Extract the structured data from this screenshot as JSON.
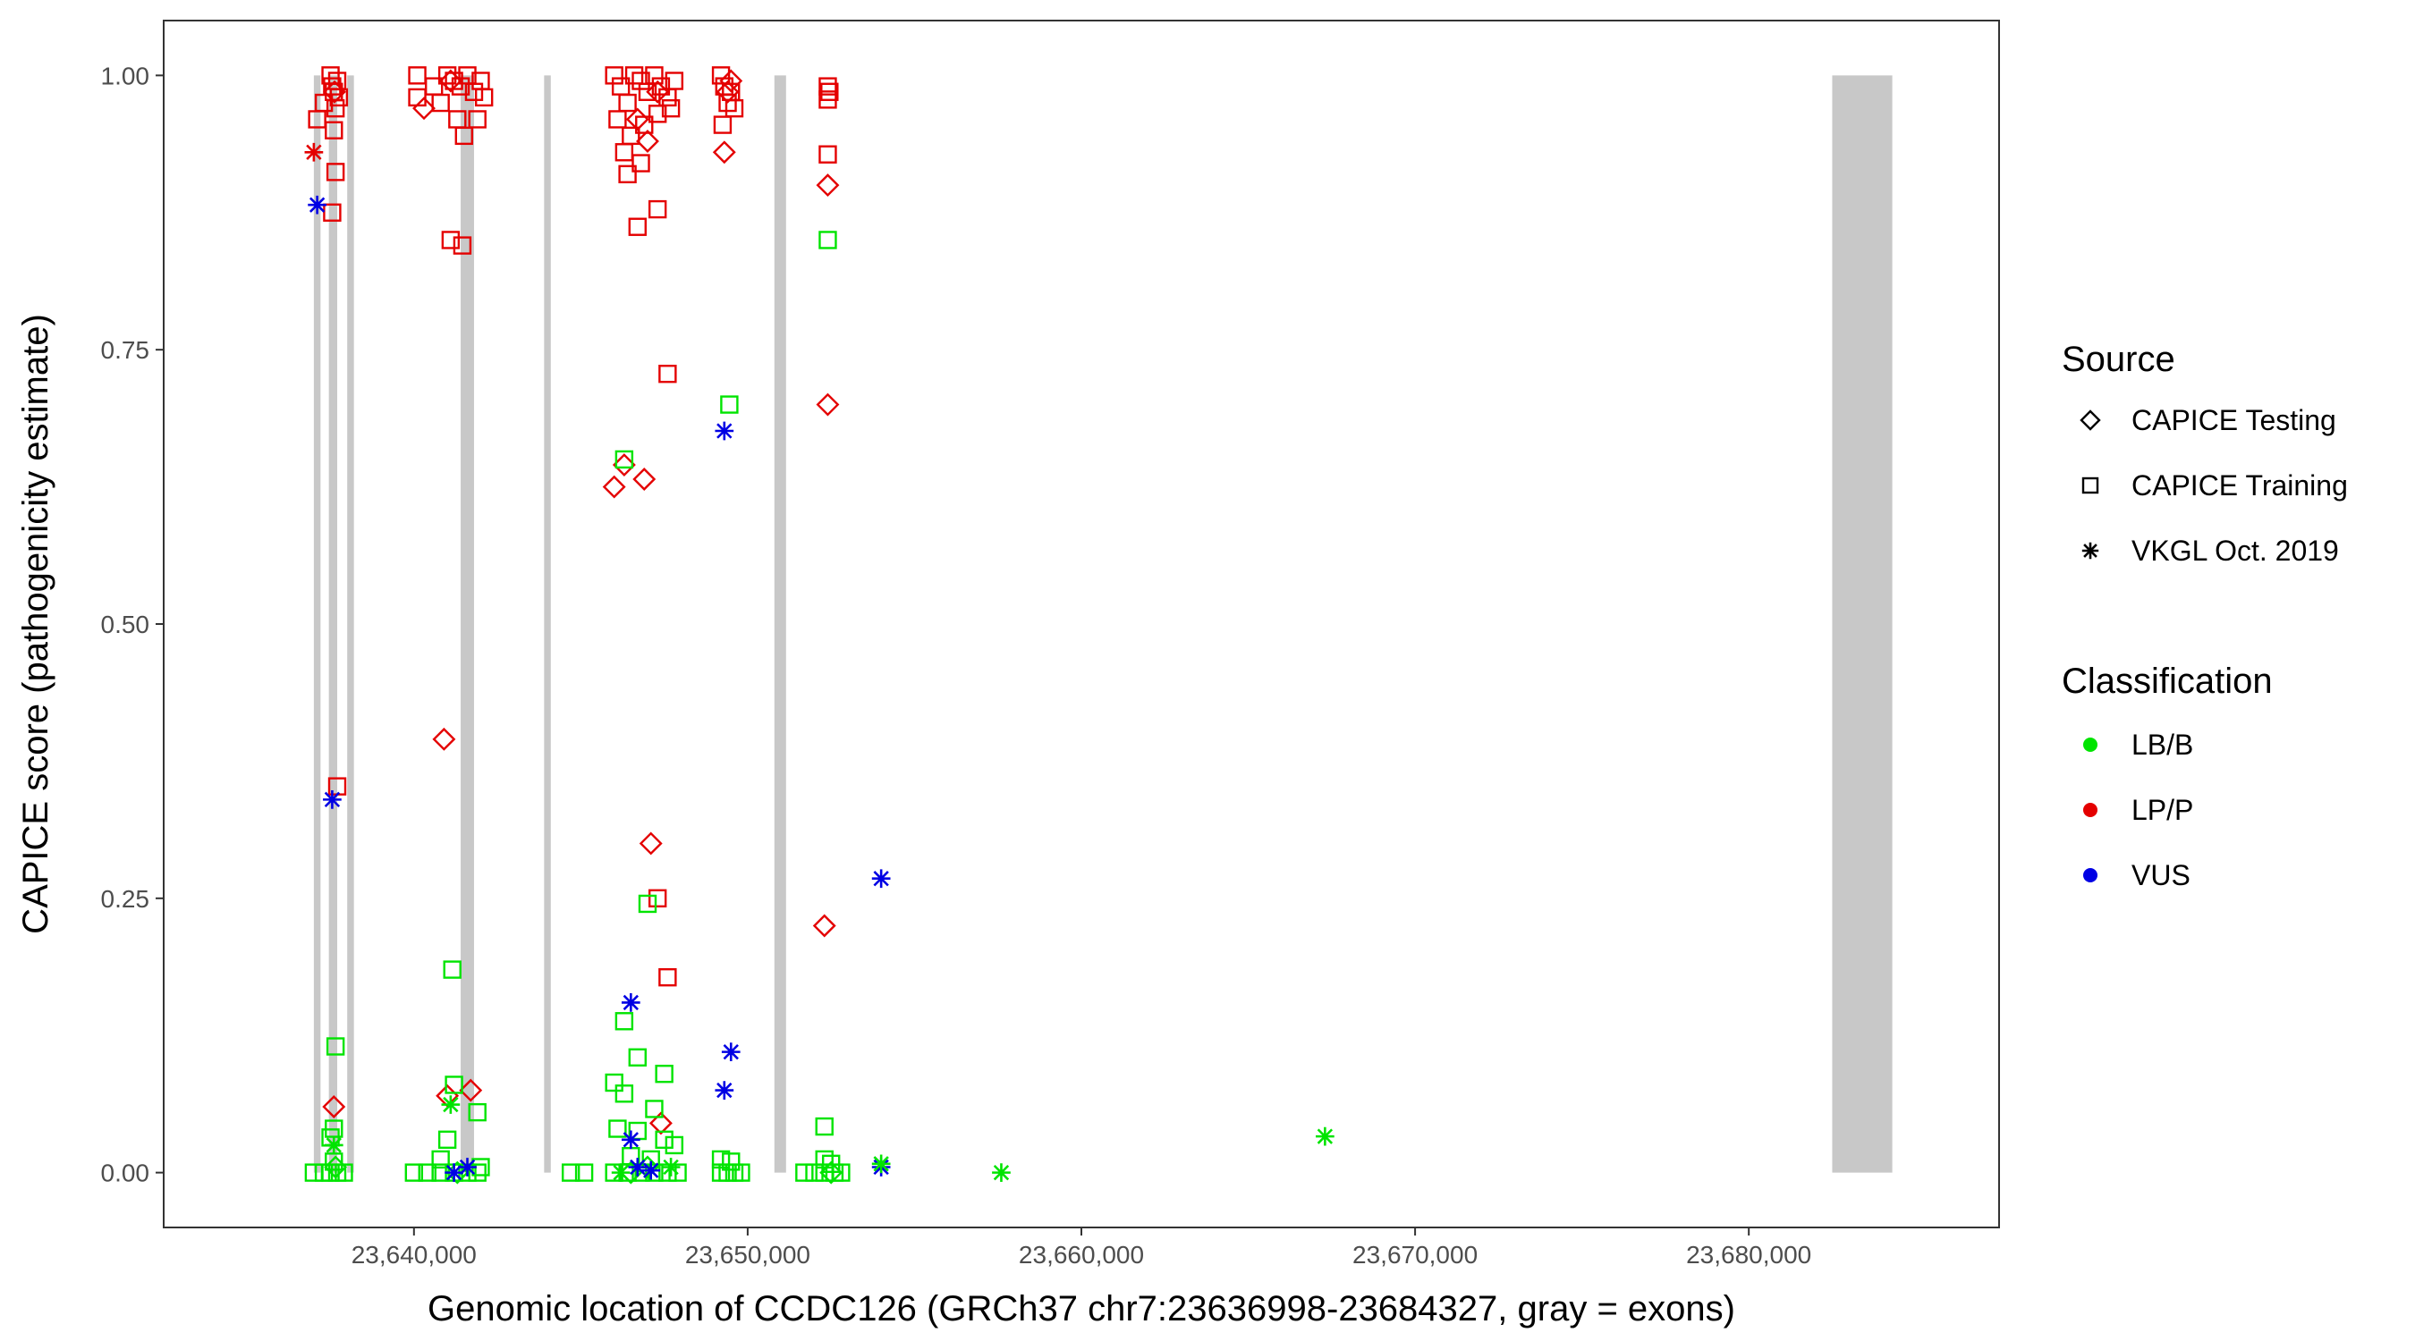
{
  "chart_data": {
    "type": "scatter",
    "title": "",
    "xlabel": "Genomic location of CCDC126 (GRCh37 chr7:23636998-23684327, gray = exons)",
    "ylabel": "CAPICE score (pathogenicity estimate)",
    "xlim": [
      23632500,
      23687500
    ],
    "ylim": [
      -0.05,
      1.05
    ],
    "x_ticks": [
      23640000,
      23650000,
      23660000,
      23670000,
      23680000
    ],
    "x_tick_labels": [
      "23,640,000",
      "23,650,000",
      "23,660,000",
      "23,670,000",
      "23,680,000"
    ],
    "y_ticks": [
      0.0,
      0.25,
      0.5,
      0.75,
      1.0
    ],
    "y_tick_labels": [
      "0.00",
      "0.25",
      "0.50",
      "0.75",
      "1.00"
    ],
    "grid": false,
    "exons": [
      [
        23637000,
        23637200
      ],
      [
        23637450,
        23637700
      ],
      [
        23638000,
        23638200
      ],
      [
        23641400,
        23641800
      ],
      [
        23643900,
        23644100
      ],
      [
        23650800,
        23651150
      ],
      [
        23682500,
        23684300
      ]
    ],
    "colors": {
      "LB/B": "#00e400",
      "LP/P": "#e40000",
      "VUS": "#0000e4",
      "exon": "#c8c8c8"
    },
    "legend": {
      "position": "right",
      "source_title": "Source",
      "source_items": [
        {
          "label": "CAPICE Testing",
          "shape": "diamond"
        },
        {
          "label": "CAPICE Training",
          "shape": "square"
        },
        {
          "label": "VKGL Oct. 2019",
          "shape": "asterisk"
        }
      ],
      "class_title": "Classification",
      "class_items": [
        {
          "label": "LB/B",
          "color": "#00e400"
        },
        {
          "label": "LP/P",
          "color": "#e40000"
        },
        {
          "label": "VUS",
          "color": "#0000e4"
        }
      ]
    },
    "series": [
      {
        "name": "CAPICE Testing",
        "shape": "diamond",
        "points": [
          {
            "x": 23637620,
            "y": 0.985,
            "c": "LP/P"
          },
          {
            "x": 23637600,
            "y": 0.06,
            "c": "LP/P"
          },
          {
            "x": 23637650,
            "y": 0.005,
            "c": "LB/B"
          },
          {
            "x": 23640300,
            "y": 0.97,
            "c": "LP/P"
          },
          {
            "x": 23640900,
            "y": 0.395,
            "c": "LP/P"
          },
          {
            "x": 23641000,
            "y": 0.07,
            "c": "LP/P"
          },
          {
            "x": 23641700,
            "y": 0.075,
            "c": "LP/P"
          },
          {
            "x": 23641100,
            "y": 0.995,
            "c": "LP/P"
          },
          {
            "x": 23641300,
            "y": 0.0,
            "c": "LB/B"
          },
          {
            "x": 23646000,
            "y": 0.625,
            "c": "LP/P"
          },
          {
            "x": 23646300,
            "y": 0.645,
            "c": "LP/P"
          },
          {
            "x": 23646900,
            "y": 0.632,
            "c": "LP/P"
          },
          {
            "x": 23647100,
            "y": 0.3,
            "c": "LP/P"
          },
          {
            "x": 23647400,
            "y": 0.045,
            "c": "LP/P"
          },
          {
            "x": 23647000,
            "y": 0.94,
            "c": "LP/P"
          },
          {
            "x": 23647300,
            "y": 0.985,
            "c": "LP/P"
          },
          {
            "x": 23646700,
            "y": 0.96,
            "c": "LP/P"
          },
          {
            "x": 23646500,
            "y": 0.0,
            "c": "LB/B"
          },
          {
            "x": 23647000,
            "y": 0.005,
            "c": "LB/B"
          },
          {
            "x": 23649300,
            "y": 0.93,
            "c": "LP/P"
          },
          {
            "x": 23649400,
            "y": 0.985,
            "c": "LP/P"
          },
          {
            "x": 23649500,
            "y": 0.995,
            "c": "LP/P"
          },
          {
            "x": 23652400,
            "y": 0.9,
            "c": "LP/P"
          },
          {
            "x": 23652400,
            "y": 0.7,
            "c": "LP/P"
          },
          {
            "x": 23652300,
            "y": 0.225,
            "c": "LP/P"
          },
          {
            "x": 23652500,
            "y": 0.0,
            "c": "LB/B"
          }
        ]
      },
      {
        "name": "CAPICE Training",
        "shape": "square",
        "points": [
          {
            "x": 23637100,
            "y": 0.96,
            "c": "LP/P"
          },
          {
            "x": 23637300,
            "y": 0.975,
            "c": "LP/P"
          },
          {
            "x": 23637500,
            "y": 1.0,
            "c": "LP/P"
          },
          {
            "x": 23637550,
            "y": 0.99,
            "c": "LP/P"
          },
          {
            "x": 23637600,
            "y": 0.985,
            "c": "LP/P"
          },
          {
            "x": 23637650,
            "y": 0.97,
            "c": "LP/P"
          },
          {
            "x": 23637700,
            "y": 0.995,
            "c": "LP/P"
          },
          {
            "x": 23637750,
            "y": 0.98,
            "c": "LP/P"
          },
          {
            "x": 23637600,
            "y": 0.95,
            "c": "LP/P"
          },
          {
            "x": 23637650,
            "y": 0.912,
            "c": "LP/P"
          },
          {
            "x": 23637550,
            "y": 0.875,
            "c": "LP/P"
          },
          {
            "x": 23637700,
            "y": 0.352,
            "c": "LP/P"
          },
          {
            "x": 23637650,
            "y": 0.115,
            "c": "LB/B"
          },
          {
            "x": 23637500,
            "y": 0.032,
            "c": "LB/B"
          },
          {
            "x": 23637600,
            "y": 0.04,
            "c": "LB/B"
          },
          {
            "x": 23637000,
            "y": 0.0,
            "c": "LB/B"
          },
          {
            "x": 23637300,
            "y": 0.0,
            "c": "LB/B"
          },
          {
            "x": 23637500,
            "y": 0.0,
            "c": "LB/B"
          },
          {
            "x": 23637700,
            "y": 0.0,
            "c": "LB/B"
          },
          {
            "x": 23637900,
            "y": 0.0,
            "c": "LB/B"
          },
          {
            "x": 23637600,
            "y": 0.01,
            "c": "LB/B"
          },
          {
            "x": 23640100,
            "y": 1.0,
            "c": "LP/P"
          },
          {
            "x": 23640100,
            "y": 0.98,
            "c": "LP/P"
          },
          {
            "x": 23640600,
            "y": 0.99,
            "c": "LP/P"
          },
          {
            "x": 23640800,
            "y": 0.975,
            "c": "LP/P"
          },
          {
            "x": 23641000,
            "y": 1.0,
            "c": "LP/P"
          },
          {
            "x": 23641200,
            "y": 0.995,
            "c": "LP/P"
          },
          {
            "x": 23641400,
            "y": 0.99,
            "c": "LP/P"
          },
          {
            "x": 23641600,
            "y": 1.0,
            "c": "LP/P"
          },
          {
            "x": 23641800,
            "y": 0.985,
            "c": "LP/P"
          },
          {
            "x": 23642000,
            "y": 0.995,
            "c": "LP/P"
          },
          {
            "x": 23642100,
            "y": 0.98,
            "c": "LP/P"
          },
          {
            "x": 23641300,
            "y": 0.96,
            "c": "LP/P"
          },
          {
            "x": 23641500,
            "y": 0.945,
            "c": "LP/P"
          },
          {
            "x": 23641900,
            "y": 0.96,
            "c": "LP/P"
          },
          {
            "x": 23641100,
            "y": 0.85,
            "c": "LP/P"
          },
          {
            "x": 23641450,
            "y": 0.845,
            "c": "LP/P"
          },
          {
            "x": 23641150,
            "y": 0.185,
            "c": "LB/B"
          },
          {
            "x": 23641200,
            "y": 0.08,
            "c": "LB/B"
          },
          {
            "x": 23641900,
            "y": 0.055,
            "c": "LB/B"
          },
          {
            "x": 23641000,
            "y": 0.03,
            "c": "LB/B"
          },
          {
            "x": 23640800,
            "y": 0.012,
            "c": "LB/B"
          },
          {
            "x": 23640000,
            "y": 0.0,
            "c": "LB/B"
          },
          {
            "x": 23640400,
            "y": 0.0,
            "c": "LB/B"
          },
          {
            "x": 23640800,
            "y": 0.0,
            "c": "LB/B"
          },
          {
            "x": 23641200,
            "y": 0.0,
            "c": "LB/B"
          },
          {
            "x": 23641600,
            "y": 0.0,
            "c": "LB/B"
          },
          {
            "x": 23641900,
            "y": 0.0,
            "c": "LB/B"
          },
          {
            "x": 23642000,
            "y": 0.005,
            "c": "LB/B"
          },
          {
            "x": 23644700,
            "y": 0.0,
            "c": "LB/B"
          },
          {
            "x": 23645100,
            "y": 0.0,
            "c": "LB/B"
          },
          {
            "x": 23646000,
            "y": 1.0,
            "c": "LP/P"
          },
          {
            "x": 23646200,
            "y": 0.99,
            "c": "LP/P"
          },
          {
            "x": 23646400,
            "y": 0.975,
            "c": "LP/P"
          },
          {
            "x": 23646600,
            "y": 1.0,
            "c": "LP/P"
          },
          {
            "x": 23646800,
            "y": 0.995,
            "c": "LP/P"
          },
          {
            "x": 23647000,
            "y": 0.985,
            "c": "LP/P"
          },
          {
            "x": 23647200,
            "y": 1.0,
            "c": "LP/P"
          },
          {
            "x": 23647400,
            "y": 0.99,
            "c": "LP/P"
          },
          {
            "x": 23647600,
            "y": 0.98,
            "c": "LP/P"
          },
          {
            "x": 23647800,
            "y": 0.995,
            "c": "LP/P"
          },
          {
            "x": 23646100,
            "y": 0.96,
            "c": "LP/P"
          },
          {
            "x": 23646500,
            "y": 0.945,
            "c": "LP/P"
          },
          {
            "x": 23646900,
            "y": 0.955,
            "c": "LP/P"
          },
          {
            "x": 23647300,
            "y": 0.965,
            "c": "LP/P"
          },
          {
            "x": 23647700,
            "y": 0.97,
            "c": "LP/P"
          },
          {
            "x": 23646300,
            "y": 0.93,
            "c": "LP/P"
          },
          {
            "x": 23646800,
            "y": 0.92,
            "c": "LP/P"
          },
          {
            "x": 23646400,
            "y": 0.91,
            "c": "LP/P"
          },
          {
            "x": 23647300,
            "y": 0.878,
            "c": "LP/P"
          },
          {
            "x": 23646700,
            "y": 0.862,
            "c": "LP/P"
          },
          {
            "x": 23647600,
            "y": 0.728,
            "c": "LP/P"
          },
          {
            "x": 23647300,
            "y": 0.25,
            "c": "LP/P"
          },
          {
            "x": 23647600,
            "y": 0.178,
            "c": "LP/P"
          },
          {
            "x": 23646300,
            "y": 0.65,
            "c": "LB/B"
          },
          {
            "x": 23647000,
            "y": 0.245,
            "c": "LB/B"
          },
          {
            "x": 23646300,
            "y": 0.138,
            "c": "LB/B"
          },
          {
            "x": 23646700,
            "y": 0.105,
            "c": "LB/B"
          },
          {
            "x": 23647500,
            "y": 0.09,
            "c": "LB/B"
          },
          {
            "x": 23646000,
            "y": 0.082,
            "c": "LB/B"
          },
          {
            "x": 23646300,
            "y": 0.072,
            "c": "LB/B"
          },
          {
            "x": 23647200,
            "y": 0.058,
            "c": "LB/B"
          },
          {
            "x": 23646100,
            "y": 0.04,
            "c": "LB/B"
          },
          {
            "x": 23646700,
            "y": 0.038,
            "c": "LB/B"
          },
          {
            "x": 23647500,
            "y": 0.03,
            "c": "LB/B"
          },
          {
            "x": 23647800,
            "y": 0.025,
            "c": "LB/B"
          },
          {
            "x": 23646500,
            "y": 0.015,
            "c": "LB/B"
          },
          {
            "x": 23647100,
            "y": 0.012,
            "c": "LB/B"
          },
          {
            "x": 23646000,
            "y": 0.0,
            "c": "LB/B"
          },
          {
            "x": 23646400,
            "y": 0.0,
            "c": "LB/B"
          },
          {
            "x": 23646800,
            "y": 0.0,
            "c": "LB/B"
          },
          {
            "x": 23647200,
            "y": 0.0,
            "c": "LB/B"
          },
          {
            "x": 23647600,
            "y": 0.0,
            "c": "LB/B"
          },
          {
            "x": 23647900,
            "y": 0.0,
            "c": "LB/B"
          },
          {
            "x": 23649200,
            "y": 1.0,
            "c": "LP/P"
          },
          {
            "x": 23649300,
            "y": 0.99,
            "c": "LP/P"
          },
          {
            "x": 23649400,
            "y": 0.975,
            "c": "LP/P"
          },
          {
            "x": 23649500,
            "y": 0.985,
            "c": "LP/P"
          },
          {
            "x": 23649600,
            "y": 0.97,
            "c": "LP/P"
          },
          {
            "x": 23649250,
            "y": 0.955,
            "c": "LP/P"
          },
          {
            "x": 23649450,
            "y": 0.7,
            "c": "LB/B"
          },
          {
            "x": 23649200,
            "y": 0.012,
            "c": "LB/B"
          },
          {
            "x": 23649500,
            "y": 0.01,
            "c": "LB/B"
          },
          {
            "x": 23649200,
            "y": 0.0,
            "c": "LB/B"
          },
          {
            "x": 23649400,
            "y": 0.0,
            "c": "LB/B"
          },
          {
            "x": 23649600,
            "y": 0.0,
            "c": "LB/B"
          },
          {
            "x": 23649800,
            "y": 0.0,
            "c": "LB/B"
          },
          {
            "x": 23652400,
            "y": 0.99,
            "c": "LP/P"
          },
          {
            "x": 23652400,
            "y": 0.978,
            "c": "LP/P"
          },
          {
            "x": 23652450,
            "y": 0.985,
            "c": "LP/P"
          },
          {
            "x": 23652400,
            "y": 0.928,
            "c": "LP/P"
          },
          {
            "x": 23652400,
            "y": 0.85,
            "c": "LB/B"
          },
          {
            "x": 23652300,
            "y": 0.042,
            "c": "LB/B"
          },
          {
            "x": 23652300,
            "y": 0.012,
            "c": "LB/B"
          },
          {
            "x": 23652500,
            "y": 0.008,
            "c": "LB/B"
          },
          {
            "x": 23651700,
            "y": 0.0,
            "c": "LB/B"
          },
          {
            "x": 23652000,
            "y": 0.0,
            "c": "LB/B"
          },
          {
            "x": 23652300,
            "y": 0.0,
            "c": "LB/B"
          },
          {
            "x": 23652600,
            "y": 0.0,
            "c": "LB/B"
          },
          {
            "x": 23652800,
            "y": 0.0,
            "c": "LB/B"
          }
        ]
      },
      {
        "name": "VKGL Oct. 2019",
        "shape": "asterisk",
        "points": [
          {
            "x": 23637000,
            "y": 0.93,
            "c": "LP/P"
          },
          {
            "x": 23637100,
            "y": 0.882,
            "c": "VUS"
          },
          {
            "x": 23637550,
            "y": 0.34,
            "c": "VUS"
          },
          {
            "x": 23637600,
            "y": 0.025,
            "c": "LB/B"
          },
          {
            "x": 23641100,
            "y": 0.062,
            "c": "LB/B"
          },
          {
            "x": 23641200,
            "y": 0.0,
            "c": "VUS"
          },
          {
            "x": 23641600,
            "y": 0.005,
            "c": "VUS"
          },
          {
            "x": 23646500,
            "y": 0.155,
            "c": "VUS"
          },
          {
            "x": 23646500,
            "y": 0.03,
            "c": "VUS"
          },
          {
            "x": 23646700,
            "y": 0.005,
            "c": "VUS"
          },
          {
            "x": 23647100,
            "y": 0.002,
            "c": "VUS"
          },
          {
            "x": 23646200,
            "y": 0.0,
            "c": "LB/B"
          },
          {
            "x": 23647700,
            "y": 0.005,
            "c": "LB/B"
          },
          {
            "x": 23649300,
            "y": 0.676,
            "c": "VUS"
          },
          {
            "x": 23649500,
            "y": 0.11,
            "c": "VUS"
          },
          {
            "x": 23649300,
            "y": 0.075,
            "c": "VUS"
          },
          {
            "x": 23654000,
            "y": 0.268,
            "c": "VUS"
          },
          {
            "x": 23654000,
            "y": 0.005,
            "c": "VUS"
          },
          {
            "x": 23654000,
            "y": 0.008,
            "c": "LB/B"
          },
          {
            "x": 23657600,
            "y": 0.0,
            "c": "LB/B"
          },
          {
            "x": 23667300,
            "y": 0.033,
            "c": "LB/B"
          }
        ]
      }
    ]
  }
}
